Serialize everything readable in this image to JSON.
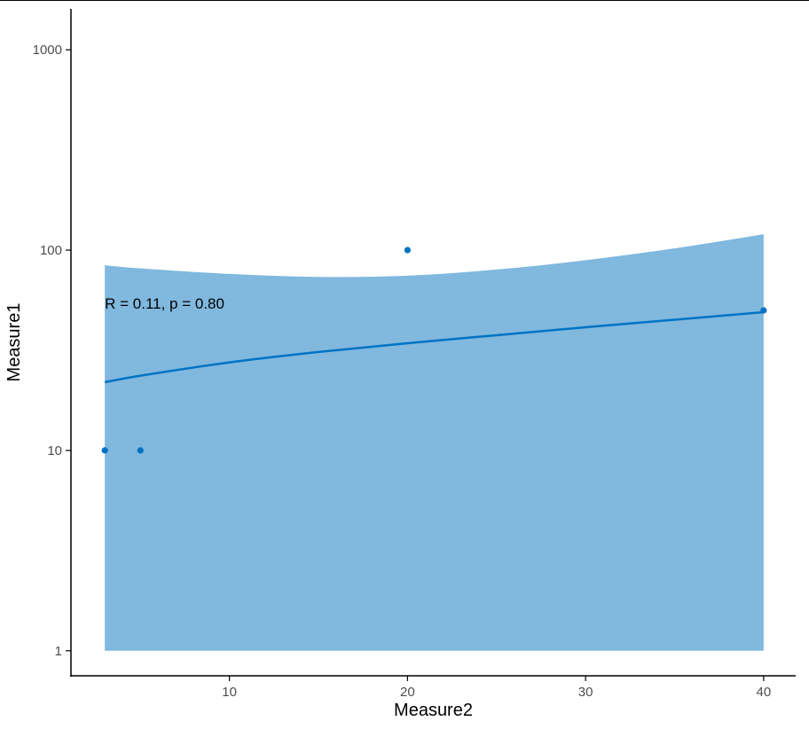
{
  "chart_data": {
    "type": "scatter",
    "title": "",
    "xlabel": "Measure2",
    "ylabel": "Measure1",
    "x_ticks": [
      10,
      20,
      30,
      40
    ],
    "y_ticks": [
      1,
      10,
      100,
      1000
    ],
    "y_scale": "log10",
    "xlim": [
      1.1,
      41.8
    ],
    "ylim": [
      0.75,
      1600
    ],
    "grid": false,
    "legend": "none",
    "points": [
      {
        "x": 3,
        "y": 10
      },
      {
        "x": 5,
        "y": 10
      },
      {
        "x": 20,
        "y": 100
      },
      {
        "x": 40,
        "y": 50
      }
    ],
    "fit_line": {
      "x": [
        3,
        5,
        10,
        15,
        20,
        25,
        30,
        35,
        40
      ],
      "y": [
        21.9,
        23.6,
        27.5,
        31.0,
        34.3,
        37.6,
        41.2,
        44.9,
        49.0
      ]
    },
    "confidence_band": {
      "x": [
        3,
        5,
        10,
        15,
        20,
        25,
        30,
        35,
        40
      ],
      "upper": [
        84,
        81,
        76,
        73.5,
        74.5,
        80,
        89,
        102,
        120
      ],
      "lower": [
        1,
        1,
        1,
        1,
        1,
        1,
        1,
        1,
        1
      ]
    },
    "annotation": "R = 0.11, p = 0.80",
    "colors": {
      "point": "#0073c2",
      "line": "#0073c2",
      "band": "#80b8de",
      "axis": "#000000"
    }
  }
}
